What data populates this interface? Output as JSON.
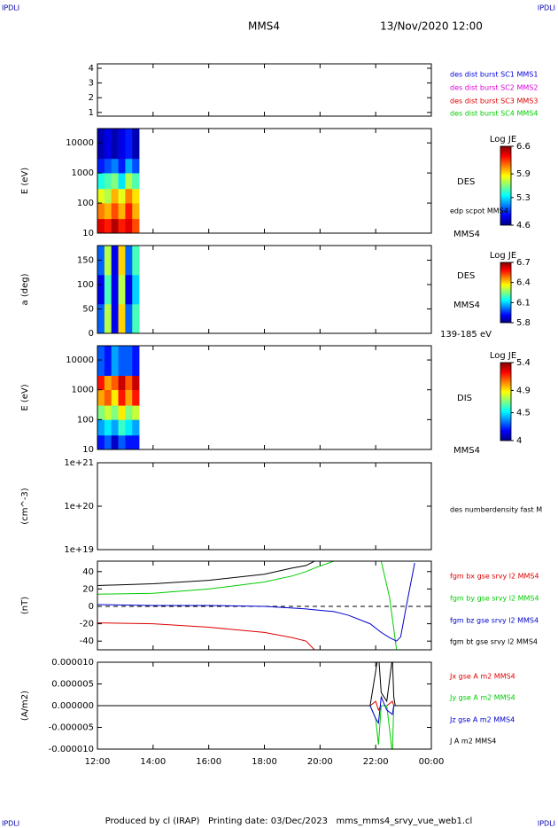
{
  "header": {
    "logo_left": "IPDLI",
    "logo_right": "IPDLI",
    "title": "MMS4",
    "date": "13/Nov/2020 12:00"
  },
  "footer": {
    "text": "Produced by cl (IRAP)   Printing date: 03/Dec/2023   mms_mms4_srvy_vue_web1.cl",
    "logo_left": "IPDLI",
    "logo_right": "IPDLI"
  },
  "chart_data": [
    {
      "type": "empty",
      "ylim": [
        0.75,
        4.3
      ],
      "yticks": [
        1,
        2,
        3,
        4
      ],
      "legend": [
        {
          "name": "des dist burst SC1 MMS1",
          "color": "#0000dd"
        },
        {
          "name": "des dist burst SC2 MMS2",
          "color": "#dd00dd"
        },
        {
          "name": "des dist burst SC3 MMS3",
          "color": "#dd0000"
        },
        {
          "name": "des dist burst SC4 MMS4",
          "color": "#00cc00"
        }
      ]
    },
    {
      "type": "heatmap",
      "ylabel": "E (eV)",
      "log": true,
      "ylim": [
        10,
        30000
      ],
      "yticks": [
        10,
        100,
        1000,
        10000
      ],
      "x_edges": [
        0,
        0.25,
        0.5,
        0.75,
        1,
        1.25,
        1.5
      ],
      "y_edges": [
        10,
        30,
        100,
        300,
        1000,
        3000,
        30000
      ],
      "z": [
        [
          6.4,
          6.3,
          6.5,
          6.3,
          6.4,
          6.2
        ],
        [
          6.1,
          6.0,
          6.2,
          6.0,
          6.3,
          6.0
        ],
        [
          5.8,
          5.7,
          6.0,
          5.8,
          6.1,
          5.9
        ],
        [
          5.4,
          5.5,
          5.6,
          5.3,
          5.7,
          5.5
        ],
        [
          4.9,
          5.0,
          5.1,
          4.9,
          5.2,
          5.0
        ],
        [
          4.7,
          4.8,
          4.7,
          4.8,
          4.9,
          4.7
        ]
      ],
      "colorbar_label": "Log JE",
      "clim": [
        4.6,
        6.6
      ],
      "cticks": [
        4.6,
        5.3,
        5.9,
        6.6
      ],
      "annotations": [
        {
          "text": "DES"
        },
        {
          "text": "edp scpot MMS4"
        },
        {
          "text": "MMS4"
        }
      ]
    },
    {
      "type": "heatmap",
      "ylabel": "a (deg)",
      "log": false,
      "ylim": [
        0,
        180
      ],
      "yticks": [
        0,
        50,
        100,
        150
      ],
      "x_edges": [
        0,
        0.25,
        0.5,
        0.75,
        1,
        1.25,
        1.5
      ],
      "y_edges": [
        0,
        60,
        120,
        180
      ],
      "z": [
        [
          6.0,
          6.3,
          5.9,
          6.4,
          6.0,
          6.2
        ],
        [
          5.9,
          6.2,
          5.9,
          6.3,
          5.9,
          6.1
        ],
        [
          6.0,
          6.3,
          5.9,
          6.4,
          6.0,
          6.2
        ]
      ],
      "colorbar_label": "Log JE",
      "clim": [
        5.8,
        6.7
      ],
      "cticks": [
        5.8,
        6.1,
        6.4,
        6.7
      ],
      "annotations": [
        {
          "text": "DES"
        },
        {
          "text": "MMS4"
        },
        {
          "text": "139-185 eV"
        }
      ]
    },
    {
      "type": "heatmap",
      "ylabel": "E (eV)",
      "log": true,
      "ylim": [
        10,
        30000
      ],
      "yticks": [
        10,
        100,
        1000,
        10000
      ],
      "x_edges": [
        0,
        0.25,
        0.5,
        0.75,
        1,
        1.25,
        1.5
      ],
      "y_edges": [
        10,
        30,
        100,
        300,
        1000,
        3000,
        30000
      ],
      "z": [
        [
          4.2,
          4.3,
          4.1,
          4.3,
          4.2,
          4.2
        ],
        [
          4.4,
          4.5,
          4.4,
          4.6,
          4.5,
          4.4
        ],
        [
          4.7,
          4.8,
          4.7,
          4.9,
          4.7,
          4.8
        ],
        [
          5.0,
          5.1,
          4.9,
          5.2,
          5.0,
          5.2
        ],
        [
          5.2,
          5.0,
          5.1,
          5.3,
          5.1,
          5.3
        ],
        [
          4.3,
          4.2,
          4.4,
          4.3,
          4.3,
          4.2
        ]
      ],
      "colorbar_label": "Log JE",
      "clim": [
        4.0,
        5.4
      ],
      "cticks": [
        4.0,
        4.5,
        4.9,
        5.4
      ],
      "annotations": [
        {
          "text": "DIS"
        },
        {
          "text": "MMS4"
        }
      ]
    },
    {
      "type": "empty",
      "ylabel": "(cm^-3)",
      "log": true,
      "ylim": [
        1e+19,
        1e+21
      ],
      "yticks": [
        {
          "value": 1e+19,
          "label": "1e+19"
        },
        {
          "value": 1e+20,
          "label": "1e+20"
        },
        {
          "value": 1e+21,
          "label": "1e+21"
        }
      ],
      "annotations": [
        {
          "text": "des numberdensity fast M"
        }
      ]
    },
    {
      "type": "line",
      "ylabel": "(nT)",
      "ylim": [
        -50,
        52
      ],
      "yticks": [
        -40,
        -20,
        0,
        20,
        40
      ],
      "zero_line": true,
      "x": [
        0,
        2,
        4,
        6,
        7,
        7.5,
        7.8,
        8.5,
        9,
        9.8,
        10.2,
        10.5,
        10.75,
        10.9,
        11.1,
        11.4
      ],
      "series": [
        {
          "name": "fgm bx gse srvy l2 MMS4",
          "color": "#dd0000",
          "values": [
            -19,
            -20,
            -24,
            -30,
            -36,
            -40,
            -50,
            null,
            null,
            null,
            null,
            null,
            null,
            null,
            null,
            null
          ]
        },
        {
          "name": "fgm by gse srvy l2 MMS4",
          "color": "#00cc00",
          "values": [
            14,
            15,
            20,
            28,
            35,
            40,
            44,
            52,
            null,
            null,
            52,
            10,
            -50,
            null,
            null,
            null
          ]
        },
        {
          "name": "fgm bz gse srvy l2 MMS4",
          "color": "#0000cc",
          "values": [
            2,
            1,
            1,
            0,
            -2,
            -3,
            -4,
            -6,
            -10,
            -20,
            -30,
            -36,
            -40,
            -35,
            0,
            50
          ]
        },
        {
          "name": "fgm bt gse srvy l2 MMS4",
          "color": "#000000",
          "values": [
            24,
            26,
            30,
            37,
            44,
            47,
            52,
            null,
            null,
            null,
            null,
            null,
            null,
            null,
            null,
            null
          ]
        }
      ]
    },
    {
      "type": "line",
      "ylabel": "(A/m2)",
      "ylim": [
        -1e-05,
        1e-05
      ],
      "yticks": [
        {
          "value": -1e-05,
          "label": "-0.000010"
        },
        {
          "value": -5e-06,
          "label": "-0.000005"
        },
        {
          "value": 0,
          "label": "0.000000"
        },
        {
          "value": 5e-06,
          "label": "0.000005"
        },
        {
          "value": 1e-05,
          "label": "0.000010"
        }
      ],
      "xlim": [
        0,
        12
      ],
      "xticks": [
        {
          "value": 0,
          "label": "12:00"
        },
        {
          "value": 2,
          "label": "14:00"
        },
        {
          "value": 4,
          "label": "16:00"
        },
        {
          "value": 6,
          "label": "18:00"
        },
        {
          "value": 8,
          "label": "20:00"
        },
        {
          "value": 10,
          "label": "22:00"
        },
        {
          "value": 12,
          "label": "00:00"
        }
      ],
      "x": [
        0,
        2,
        4,
        6,
        8,
        9.8,
        10.0,
        10.1,
        10.2,
        10.4,
        10.6,
        10.65,
        10.7,
        11,
        12
      ],
      "series": [
        {
          "name": "Jx gse A m2 MMS4",
          "color": "#dd0000",
          "values": [
            0,
            0,
            0,
            0,
            0,
            0,
            1e-06,
            -1e-06,
            0,
            0,
            1e-06,
            0,
            0,
            0,
            0
          ]
        },
        {
          "name": "Jy gse A m2 MMS4",
          "color": "#00cc00",
          "values": [
            0,
            0,
            0,
            0,
            0,
            0,
            -3e-06,
            -9e-06,
            0,
            0,
            -1.1e-05,
            0,
            0,
            0,
            0
          ]
        },
        {
          "name": "Jz gse A m2 MMS4",
          "color": "#0000cc",
          "values": [
            0,
            0,
            0,
            0,
            0,
            0,
            -3e-06,
            -4e-06,
            2e-06,
            -1e-06,
            -2e-06,
            0,
            0,
            0,
            0
          ]
        },
        {
          "name": "J A m2 MMS4",
          "color": "#000000",
          "values": [
            0,
            0,
            0,
            0,
            0,
            0,
            8e-06,
            1.2e-05,
            3e-06,
            1e-06,
            1.1e-05,
            2e-06,
            0,
            0,
            0
          ]
        }
      ]
    }
  ]
}
